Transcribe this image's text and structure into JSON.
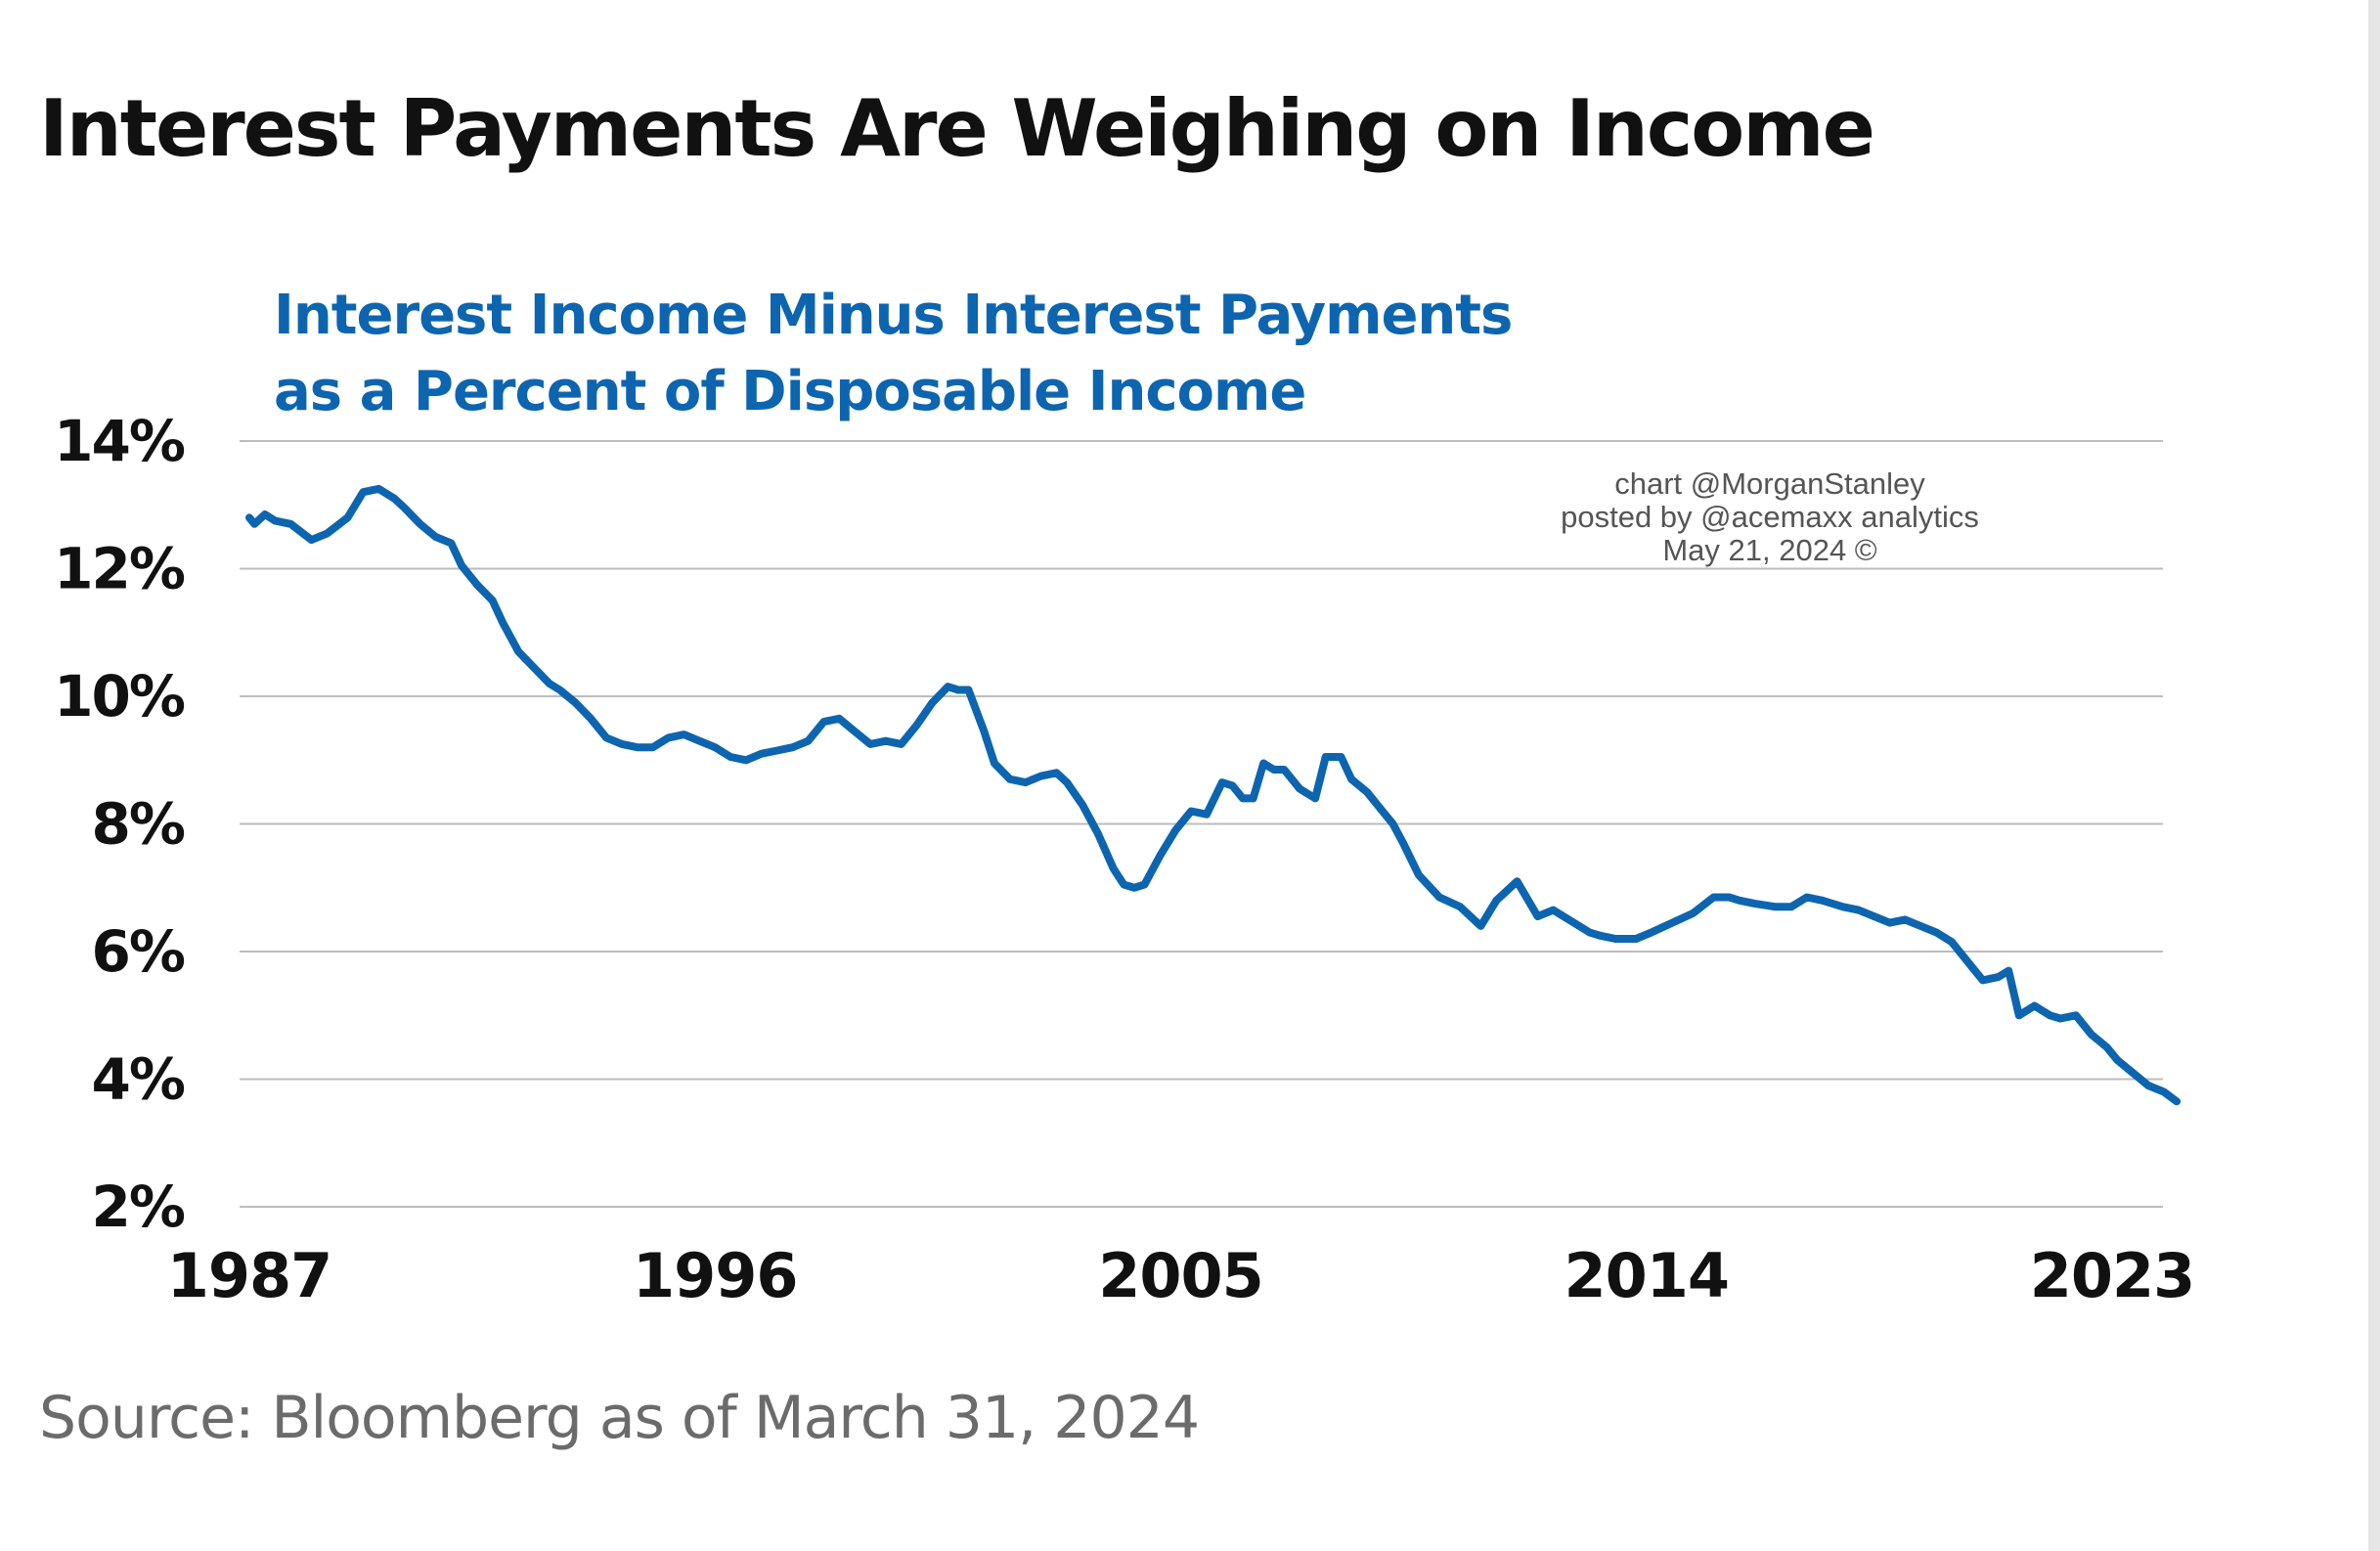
{
  "title": "Interest Payments Are Weighing on Income",
  "source": "Source: Bloomberg as of March 31, 2024",
  "watermark": {
    "line1": "chart @MorganStanley",
    "line2": "posted by @acemaxx analytics",
    "line3": "May 21, 2024 ©"
  },
  "colors": {
    "line": "#0d65b0",
    "subtitle": "#0d65b0",
    "grid": "#bdbdbd",
    "text": "#111111"
  },
  "chart_data": {
    "type": "line",
    "title": "Interest Income Minus Interest Payments as a Percent of Disposable Income",
    "title_lines": [
      "Interest Income Minus Interest Payments",
      "as a Percent of Disposable Income"
    ],
    "xlabel": "",
    "ylabel": "",
    "grid": true,
    "legend": "none",
    "xlim": [
      1987,
      2024.25
    ],
    "ylim": [
      2,
      14
    ],
    "x_ticks": [
      1987,
      1996,
      2005,
      2014,
      2023
    ],
    "x_tick_labels": [
      "1987",
      "1996",
      "2005",
      "2014",
      "2023"
    ],
    "y_ticks": [
      2,
      4,
      6,
      8,
      10,
      12,
      14
    ],
    "y_tick_labels": [
      "2%",
      "4%",
      "6%",
      "8%",
      "10%",
      "12%",
      "14%"
    ],
    "series": [
      {
        "x": [
          1987.0,
          1987.1,
          1987.3,
          1987.5,
          1987.8,
          1988.2,
          1988.5,
          1988.9,
          1989.2,
          1989.5,
          1989.8,
          1990.0,
          1990.3,
          1990.6,
          1990.9,
          1991.1,
          1991.4,
          1991.7,
          1991.9,
          1992.2,
          1992.5,
          1992.8,
          1993.0,
          1993.3,
          1993.6,
          1993.9,
          1994.2,
          1994.5,
          1994.8,
          1995.1,
          1995.4,
          1995.7,
          1996.0,
          1996.3,
          1996.6,
          1996.9,
          1997.2,
          1997.5,
          1997.8,
          1998.1,
          1998.4,
          1998.7,
          1999.0,
          1999.3,
          1999.6,
          1999.9,
          2000.2,
          2000.5,
          2000.7,
          2000.9,
          2001.2,
          2001.4,
          2001.7,
          2002.0,
          2002.3,
          2002.6,
          2002.8,
          2003.1,
          2003.4,
          2003.7,
          2003.9,
          2004.1,
          2004.3,
          2004.6,
          2004.9,
          2005.2,
          2005.5,
          2005.8,
          2006.0,
          2006.2,
          2006.4,
          2006.6,
          2006.8,
          2007.0,
          2007.3,
          2007.6,
          2007.8,
          2008.1,
          2008.3,
          2008.6,
          2008.9,
          2009.1,
          2009.3,
          2009.6,
          2010.0,
          2010.4,
          2010.8,
          2011.1,
          2011.5,
          2011.9,
          2012.2,
          2012.6,
          2012.9,
          2013.1,
          2013.4,
          2013.8,
          2014.1,
          2014.5,
          2014.9,
          2015.3,
          2015.6,
          2015.8,
          2016.1,
          2016.5,
          2016.8,
          2017.1,
          2017.4,
          2017.6,
          2017.8,
          2018.1,
          2018.4,
          2018.7,
          2019.0,
          2019.3,
          2019.6,
          2019.9,
          2020.2,
          2020.5,
          2020.8,
          2021.0,
          2021.2,
          2021.5,
          2021.8,
          2022.0,
          2022.3,
          2022.6,
          2022.9,
          2023.1,
          2023.4,
          2023.7,
          2024.0,
          2024.25
        ],
        "values": [
          12.8,
          12.7,
          12.85,
          12.75,
          12.7,
          12.45,
          12.55,
          12.8,
          13.2,
          13.25,
          13.1,
          12.95,
          12.7,
          12.5,
          12.4,
          12.05,
          11.75,
          11.5,
          11.15,
          10.7,
          10.45,
          10.2,
          10.1,
          9.9,
          9.65,
          9.35,
          9.25,
          9.2,
          9.2,
          9.35,
          9.4,
          9.3,
          9.2,
          9.05,
          9.0,
          9.1,
          9.15,
          9.2,
          9.3,
          9.6,
          9.65,
          9.45,
          9.25,
          9.3,
          9.25,
          9.55,
          9.9,
          10.15,
          10.1,
          10.1,
          9.45,
          8.95,
          8.7,
          8.65,
          8.75,
          8.8,
          8.65,
          8.3,
          7.85,
          7.3,
          7.05,
          7.0,
          7.05,
          7.5,
          7.9,
          8.2,
          8.15,
          8.65,
          8.6,
          8.4,
          8.4,
          8.95,
          8.85,
          8.85,
          8.55,
          8.4,
          9.05,
          9.05,
          8.7,
          8.5,
          8.2,
          8.0,
          7.7,
          7.2,
          6.85,
          6.7,
          6.4,
          6.8,
          7.1,
          6.55,
          6.65,
          6.45,
          6.3,
          6.25,
          6.2,
          6.2,
          6.3,
          6.45,
          6.6,
          6.85,
          6.85,
          6.8,
          6.75,
          6.7,
          6.7,
          6.85,
          6.8,
          6.75,
          6.7,
          6.65,
          6.55,
          6.45,
          6.5,
          6.4,
          6.3,
          6.15,
          5.85,
          5.55,
          5.6,
          5.7,
          5.0,
          5.15,
          5.0,
          4.95,
          5.0,
          4.7,
          4.5,
          4.3,
          4.1,
          3.9,
          3.8,
          3.65
        ]
      }
    ]
  }
}
